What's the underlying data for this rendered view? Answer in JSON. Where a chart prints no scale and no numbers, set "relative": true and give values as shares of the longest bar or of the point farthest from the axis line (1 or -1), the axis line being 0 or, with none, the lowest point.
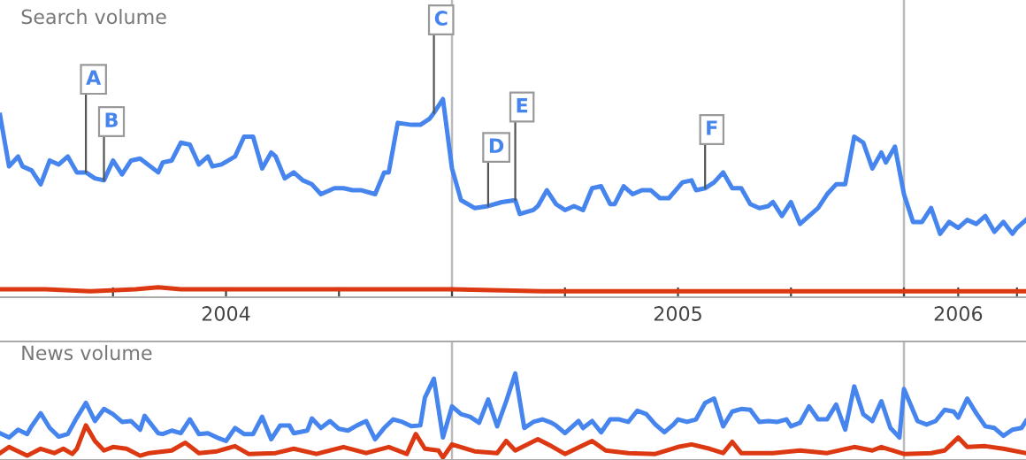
{
  "chart_data": [
    {
      "type": "line",
      "title": "Search volume",
      "relative": true,
      "grid": "x",
      "xlim": [
        2004.0,
        2006.27
      ],
      "xticks": [
        {
          "value": 2004.25,
          "label": null
        },
        {
          "value": 2004.5,
          "label": "2004"
        },
        {
          "value": 2004.75,
          "label": null
        },
        {
          "value": 2005.0,
          "label": null
        },
        {
          "value": 2005.25,
          "label": null
        },
        {
          "value": 2005.5,
          "label": "2005"
        },
        {
          "value": 2005.75,
          "label": null
        },
        {
          "value": 2006.0,
          "label": null
        },
        {
          "value": 2006.12,
          "label": "2006"
        },
        {
          "value": 2006.25,
          "label": null
        }
      ],
      "series": [
        {
          "color": "#4684ee",
          "x": [
            2004.0,
            2004.02,
            2004.04,
            2004.05,
            2004.07,
            2004.09,
            2004.11,
            2004.13,
            2004.15,
            2004.17,
            2004.19,
            2004.21,
            2004.23,
            2004.25,
            2004.27,
            2004.29,
            2004.31,
            2004.35,
            2004.36,
            2004.38,
            2004.4,
            2004.42,
            2004.44,
            2004.46,
            2004.47,
            2004.49,
            2004.52,
            2004.54,
            2004.56,
            2004.58,
            2004.6,
            2004.61,
            2004.63,
            2004.65,
            2004.67,
            2004.69,
            2004.71,
            2004.74,
            2004.76,
            2004.78,
            2004.8,
            2004.83,
            2004.85,
            2004.86,
            2004.88,
            2004.91,
            2004.93,
            2004.95,
            2004.96,
            2004.98,
            2005.0,
            2005.02,
            2005.05,
            2005.08,
            2005.11,
            2005.14,
            2005.15,
            2005.18,
            2005.19,
            2005.21,
            2005.23,
            2005.25,
            2005.27,
            2005.29,
            2005.31,
            2005.33,
            2005.35,
            2005.36,
            2005.38,
            2005.4,
            2005.42,
            2005.44,
            2005.46,
            2005.48,
            2005.51,
            2005.53,
            2005.54,
            2005.56,
            2005.58,
            2005.6,
            2005.62,
            2005.64,
            2005.66,
            2005.68,
            2005.7,
            2005.71,
            2005.73,
            2005.75,
            2005.77,
            2005.8,
            2005.81,
            2005.83,
            2005.85,
            2005.87,
            2005.89,
            2005.91,
            2005.93,
            2005.95,
            2005.96,
            2005.98,
            2006.0,
            2006.02,
            2006.04,
            2006.06,
            2006.08,
            2006.1,
            2006.12,
            2006.14,
            2006.16,
            2006.18,
            2006.2,
            2006.22,
            2006.24,
            2006.25,
            2006.27
          ],
          "values": [
            0.92,
            0.66,
            0.71,
            0.66,
            0.64,
            0.57,
            0.69,
            0.67,
            0.71,
            0.63,
            0.63,
            0.6,
            0.59,
            0.69,
            0.62,
            0.69,
            0.7,
            0.63,
            0.68,
            0.69,
            0.78,
            0.77,
            0.67,
            0.71,
            0.66,
            0.67,
            0.71,
            0.81,
            0.81,
            0.65,
            0.73,
            0.71,
            0.6,
            0.63,
            0.59,
            0.57,
            0.52,
            0.55,
            0.55,
            0.54,
            0.54,
            0.52,
            0.63,
            0.63,
            0.88,
            0.87,
            0.87,
            0.9,
            0.93,
            1.0,
            0.65,
            0.49,
            0.45,
            0.46,
            0.48,
            0.49,
            0.42,
            0.44,
            0.46,
            0.54,
            0.47,
            0.44,
            0.46,
            0.44,
            0.55,
            0.56,
            0.47,
            0.47,
            0.56,
            0.52,
            0.54,
            0.54,
            0.5,
            0.5,
            0.58,
            0.59,
            0.54,
            0.55,
            0.58,
            0.63,
            0.55,
            0.55,
            0.47,
            0.45,
            0.46,
            0.48,
            0.41,
            0.48,
            0.37,
            0.43,
            0.45,
            0.52,
            0.57,
            0.57,
            0.81,
            0.78,
            0.65,
            0.73,
            0.68,
            0.76,
            0.52,
            0.38,
            0.38,
            0.45,
            0.32,
            0.38,
            0.35,
            0.39,
            0.37,
            0.41,
            0.33,
            0.38,
            0.32,
            0.35,
            0.39
          ]
        },
        {
          "color": "#dc3912",
          "x": [
            2004.0,
            2004.1,
            2004.2,
            2004.3,
            2004.35,
            2004.4,
            2004.5,
            2004.7,
            2004.9,
            2005.0,
            2005.2,
            2005.4,
            2005.6,
            2005.8,
            2006.0,
            2006.27
          ],
          "values": [
            0.04,
            0.04,
            0.03,
            0.04,
            0.05,
            0.04,
            0.04,
            0.04,
            0.04,
            0.04,
            0.03,
            0.03,
            0.03,
            0.03,
            0.03,
            0.03
          ]
        }
      ],
      "annotations": [
        {
          "text": "A",
          "x": 2004.19,
          "y": 0.63
        },
        {
          "text": "B",
          "x": 2004.23,
          "y": 0.59
        },
        {
          "text": "C",
          "x": 2004.96,
          "y": 0.93
        },
        {
          "text": "D",
          "x": 2005.08,
          "y": 0.46
        },
        {
          "text": "E",
          "x": 2005.14,
          "y": 0.49
        },
        {
          "text": "F",
          "x": 2005.56,
          "y": 0.55
        }
      ]
    },
    {
      "type": "line",
      "title": "News volume",
      "relative": true,
      "grid": "x",
      "xlim": [
        2004.0,
        2006.27
      ],
      "tick_labels": false,
      "series": [
        {
          "color": "#4684ee",
          "x": [
            2004.0,
            2004.02,
            2004.04,
            2004.06,
            2004.07,
            2004.09,
            2004.11,
            2004.13,
            2004.15,
            2004.17,
            2004.19,
            2004.21,
            2004.23,
            2004.25,
            2004.27,
            2004.29,
            2004.31,
            2004.32,
            2004.35,
            2004.36,
            2004.38,
            2004.4,
            2004.42,
            2004.44,
            2004.46,
            2004.48,
            2004.5,
            2004.52,
            2004.54,
            2004.56,
            2004.58,
            2004.6,
            2004.62,
            2004.64,
            2004.65,
            2004.68,
            2004.69,
            2004.71,
            2004.73,
            2004.75,
            2004.77,
            2004.79,
            2004.81,
            2004.83,
            2004.85,
            2004.87,
            2004.89,
            2004.91,
            2004.93,
            2004.94,
            2004.96,
            2004.98,
            2005.0,
            2005.02,
            2005.04,
            2005.06,
            2005.08,
            2005.1,
            2005.12,
            2005.14,
            2005.16,
            2005.18,
            2005.2,
            2005.22,
            2005.23,
            2005.25,
            2005.28,
            2005.29,
            2005.31,
            2005.33,
            2005.35,
            2005.37,
            2005.39,
            2005.41,
            2005.43,
            2005.45,
            2005.47,
            2005.49,
            2005.5,
            2005.52,
            2005.54,
            2005.56,
            2005.58,
            2005.6,
            2005.62,
            2005.64,
            2005.66,
            2005.68,
            2005.7,
            2005.72,
            2005.74,
            2005.75,
            2005.77,
            2005.79,
            2005.81,
            2005.83,
            2005.85,
            2005.87,
            2005.89,
            2005.91,
            2005.93,
            2005.95,
            2005.97,
            2005.99,
            2006.0,
            2006.03,
            2006.05,
            2006.07,
            2006.09,
            2006.11,
            2006.12,
            2006.14,
            2006.16,
            2006.18,
            2006.2,
            2006.22,
            2006.24,
            2006.26,
            2006.27
          ],
          "values": [
            0.31,
            0.26,
            0.35,
            0.3,
            0.39,
            0.54,
            0.37,
            0.27,
            0.3,
            0.49,
            0.66,
            0.45,
            0.59,
            0.53,
            0.44,
            0.45,
            0.35,
            0.51,
            0.31,
            0.3,
            0.34,
            0.31,
            0.47,
            0.3,
            0.31,
            0.26,
            0.22,
            0.37,
            0.3,
            0.3,
            0.5,
            0.24,
            0.4,
            0.4,
            0.31,
            0.34,
            0.48,
            0.37,
            0.45,
            0.36,
            0.34,
            0.4,
            0.45,
            0.24,
            0.37,
            0.47,
            0.44,
            0.39,
            0.4,
            0.72,
            0.94,
            0.26,
            0.62,
            0.53,
            0.5,
            0.43,
            0.7,
            0.39,
            0.68,
            1.0,
            0.37,
            0.44,
            0.47,
            0.43,
            0.4,
            0.31,
            0.45,
            0.37,
            0.45,
            0.32,
            0.47,
            0.47,
            0.44,
            0.57,
            0.53,
            0.41,
            0.32,
            0.41,
            0.47,
            0.44,
            0.47,
            0.66,
            0.71,
            0.39,
            0.56,
            0.59,
            0.58,
            0.44,
            0.45,
            0.44,
            0.47,
            0.39,
            0.43,
            0.62,
            0.47,
            0.47,
            0.64,
            0.35,
            0.85,
            0.53,
            0.45,
            0.68,
            0.37,
            0.26,
            0.82,
            0.45,
            0.41,
            0.45,
            0.58,
            0.56,
            0.49,
            0.71,
            0.54,
            0.39,
            0.37,
            0.28,
            0.35,
            0.37,
            0.45
          ]
        },
        {
          "color": "#dc3912",
          "x": [
            2004.0,
            2004.02,
            2004.06,
            2004.09,
            2004.12,
            2004.14,
            2004.16,
            2004.17,
            2004.19,
            2004.21,
            2004.23,
            2004.25,
            2004.28,
            2004.31,
            2004.33,
            2004.38,
            2004.41,
            2004.44,
            2004.48,
            2004.52,
            2004.55,
            2004.61,
            2004.65,
            2004.7,
            2004.76,
            2004.81,
            2004.86,
            2004.9,
            2004.92,
            2004.94,
            2004.97,
            2004.98,
            2005.0,
            2005.05,
            2005.1,
            2005.12,
            2005.14,
            2005.19,
            2005.22,
            2005.25,
            2005.31,
            2005.34,
            2005.39,
            2005.45,
            2005.5,
            2005.53,
            2005.57,
            2005.6,
            2005.62,
            2005.64,
            2005.71,
            2005.77,
            2005.83,
            2005.89,
            2005.93,
            2005.95,
            2006.0,
            2006.06,
            2006.09,
            2006.12,
            2006.14,
            2006.18,
            2006.22,
            2006.27
          ],
          "values": [
            0.08,
            0.15,
            0.05,
            0.13,
            0.08,
            0.13,
            0.07,
            0.13,
            0.4,
            0.22,
            0.11,
            0.15,
            0.13,
            0.05,
            0.08,
            0.11,
            0.2,
            0.08,
            0.1,
            0.16,
            0.07,
            0.08,
            0.13,
            0.07,
            0.15,
            0.08,
            0.15,
            0.07,
            0.3,
            0.13,
            0.11,
            0.03,
            0.18,
            0.1,
            0.08,
            0.22,
            0.11,
            0.24,
            0.16,
            0.07,
            0.22,
            0.11,
            0.08,
            0.07,
            0.15,
            0.18,
            0.13,
            0.08,
            0.21,
            0.08,
            0.08,
            0.11,
            0.08,
            0.15,
            0.11,
            0.15,
            0.07,
            0.08,
            0.11,
            0.26,
            0.15,
            0.16,
            0.13,
            0.08
          ]
        }
      ]
    }
  ]
}
